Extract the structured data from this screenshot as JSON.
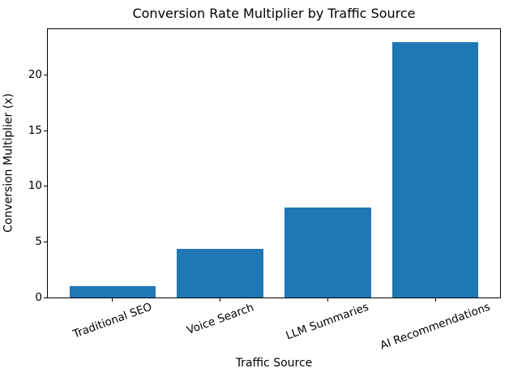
{
  "chart_data": {
    "type": "bar",
    "title": "Conversion Rate Multiplier by Traffic Source",
    "xlabel": "Traffic Source",
    "ylabel": "Conversion Multiplier (x)",
    "categories": [
      "Traditional SEO",
      "Voice Search",
      "LLM Summaries",
      "AI Recommendations"
    ],
    "values": [
      1.0,
      4.4,
      8.1,
      23.0
    ],
    "ylim": [
      0,
      24.15
    ],
    "yticks": [
      0,
      5,
      10,
      15,
      20
    ],
    "x_tick_rotation_deg": 20,
    "bar_color": "#1f77b4",
    "axis_color": "#000000",
    "background_color": "#ffffff",
    "grid": false,
    "legend_position": "none"
  }
}
